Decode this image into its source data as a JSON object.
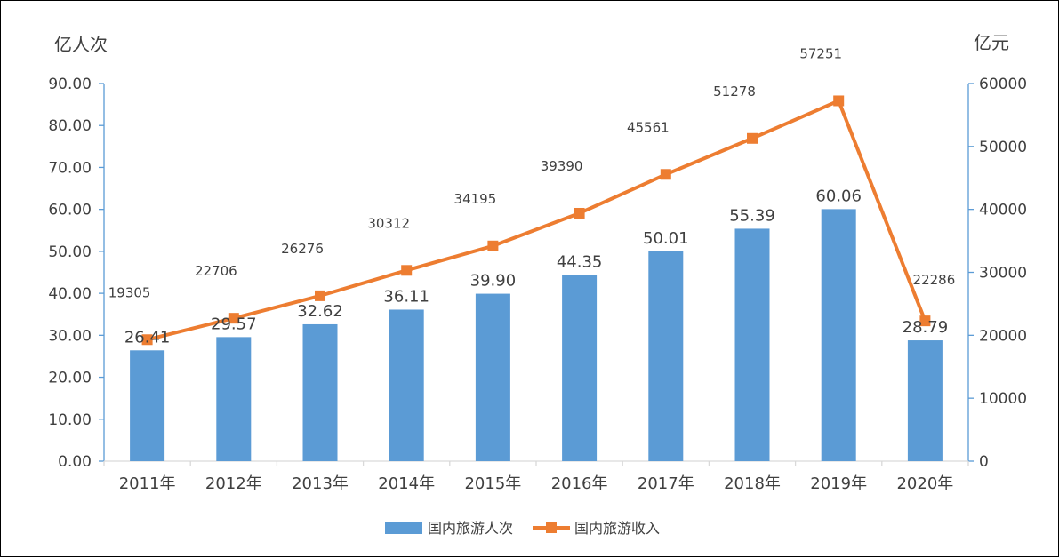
{
  "chart_data": {
    "type": "bar",
    "categories": [
      "2011年",
      "2012年",
      "2013年",
      "2014年",
      "2015年",
      "2016年",
      "2017年",
      "2018年",
      "2019年",
      "2020年"
    ],
    "y_left": {
      "unit": "亿人次",
      "ylim": [
        0,
        90
      ],
      "ticks": [
        "0.00",
        "10.00",
        "20.00",
        "30.00",
        "40.00",
        "50.00",
        "60.00",
        "70.00",
        "80.00",
        "90.00"
      ]
    },
    "y_right": {
      "unit": "亿元",
      "ylim": [
        0,
        60000
      ],
      "ticks": [
        "0",
        "10000",
        "20000",
        "30000",
        "40000",
        "50000",
        "60000"
      ]
    },
    "series": [
      {
        "name": "国内旅游人次",
        "type": "bar",
        "axis": "left",
        "color": "#5B9BD5",
        "values": [
          26.41,
          29.57,
          32.62,
          36.11,
          39.9,
          44.35,
          50.01,
          55.39,
          60.06,
          28.79
        ],
        "labels": [
          "26.41",
          "29.57",
          "32.62",
          "36.11",
          "39.90",
          "44.35",
          "50.01",
          "55.39",
          "60.06",
          "28.79"
        ]
      },
      {
        "name": "国内旅游收入",
        "type": "line",
        "axis": "right",
        "color": "#ED7D31",
        "marker": "square",
        "values": [
          19305,
          22706,
          26276,
          30312,
          34195,
          39390,
          45561,
          51278,
          57251,
          22286
        ],
        "labels": [
          "19305",
          "22706",
          "26276",
          "30312",
          "34195",
          "39390",
          "45561",
          "51278",
          "57251",
          "22286"
        ]
      }
    ],
    "grid": false,
    "legend": "bottom"
  }
}
